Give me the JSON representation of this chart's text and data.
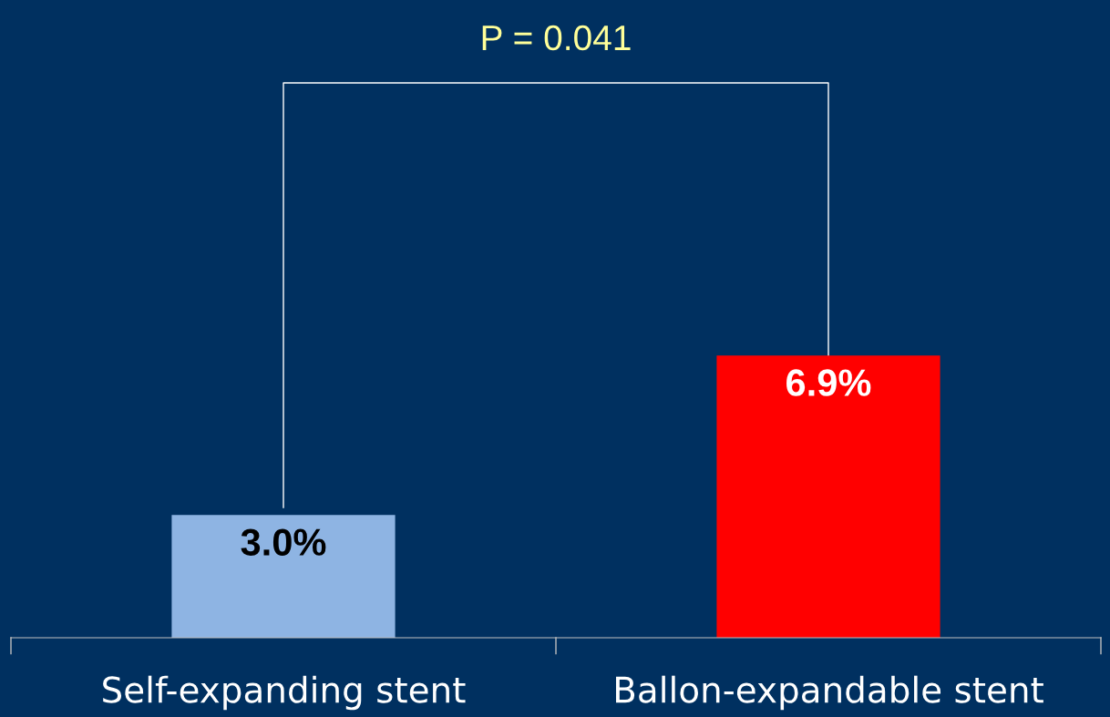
{
  "chart_data": {
    "type": "bar",
    "categories": [
      "Self-expanding stent",
      "Ballon-expandable stent"
    ],
    "values": [
      3.0,
      6.9
    ],
    "colors": [
      "#8eb4e3",
      "#ff0000"
    ],
    "value_labels": [
      "3.0%",
      "6.9%"
    ],
    "annotations": [
      "P = 0.041"
    ]
  }
}
